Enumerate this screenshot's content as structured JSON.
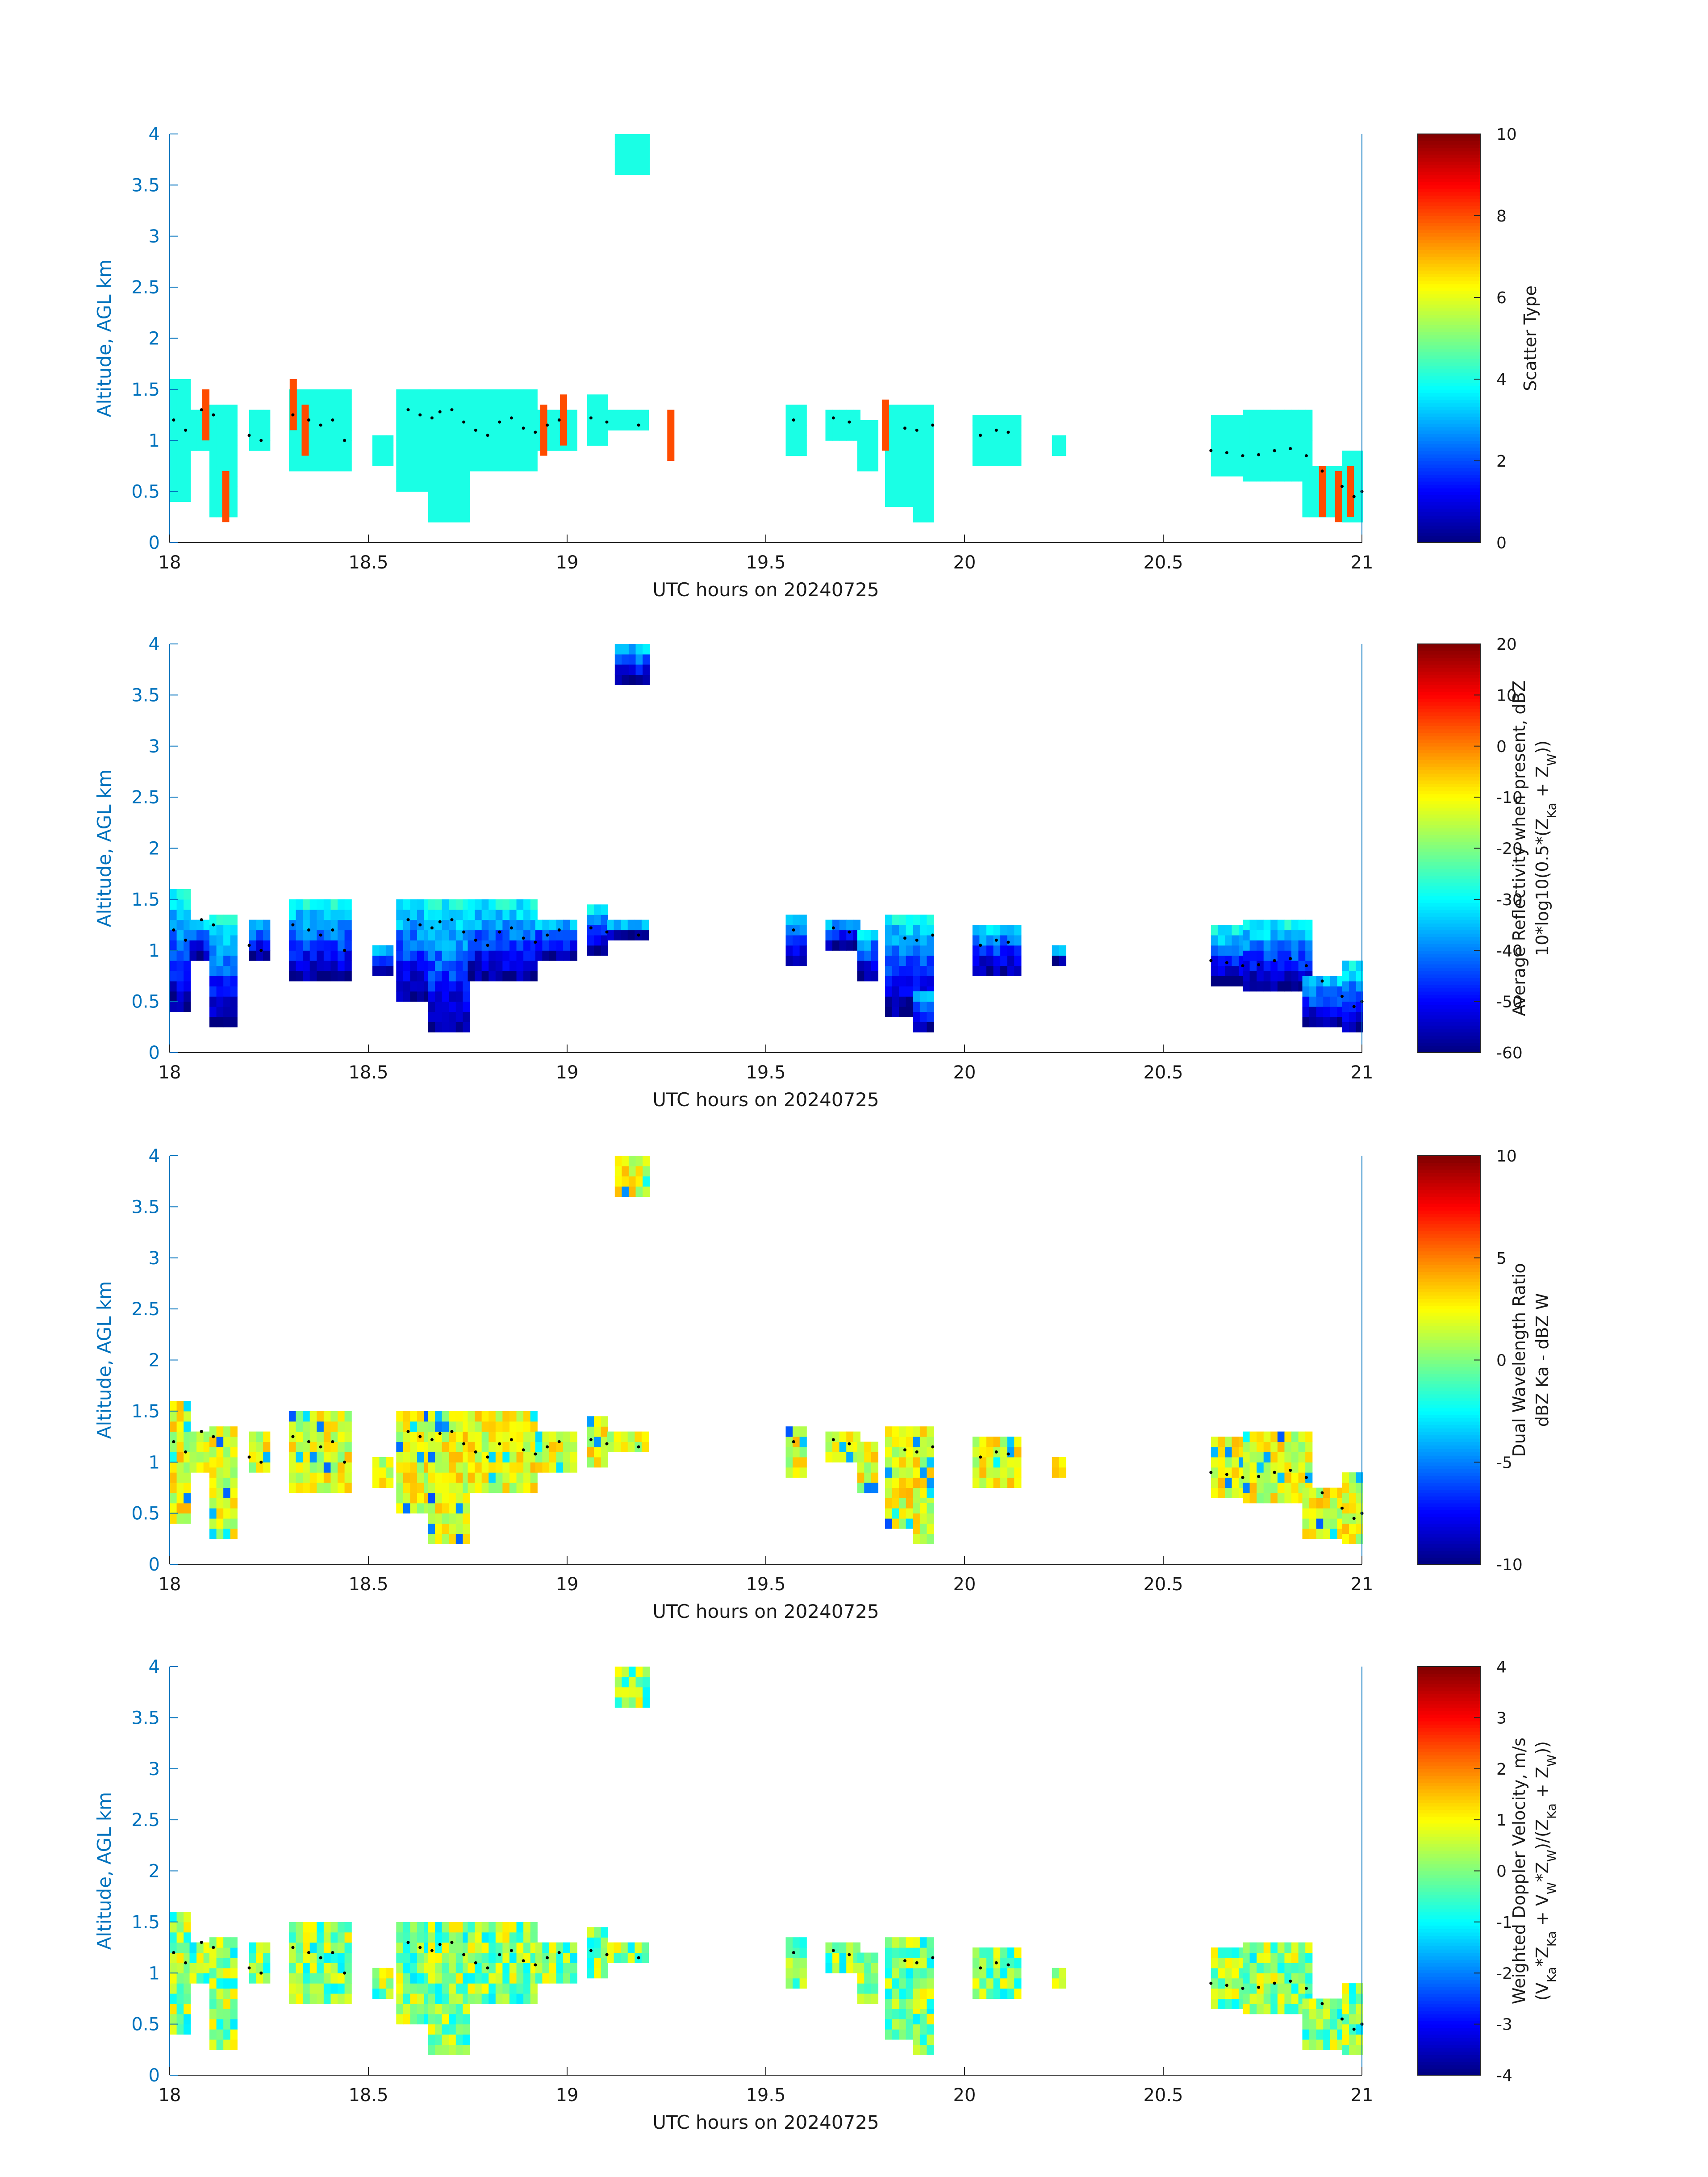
{
  "chart_data": [
    {
      "type": "heatmap",
      "xlabel": "UTC hours on 20240725",
      "ylabel": "Altitude, AGL km",
      "xlim": [
        18,
        21
      ],
      "ylim": [
        0,
        4
      ],
      "xticks": [
        "18",
        "18.5",
        "19",
        "19.5",
        "20",
        "20.5",
        "21"
      ],
      "yticks": [
        "0",
        "0.5",
        "1",
        "1.5",
        "2",
        "2.5",
        "3",
        "3.5",
        "4"
      ],
      "colorbar": {
        "label_lines": [
          "Scatter Type"
        ],
        "range": [
          0,
          10
        ],
        "ticks": [
          "0",
          "2",
          "4",
          "6",
          "8",
          "10"
        ]
      },
      "dominant_value": 4,
      "cell_value_note": "",
      "highlight_cells": [
        [
          18.09,
          1.25,
          8
        ],
        [
          18.14,
          0.45,
          8
        ],
        [
          18.31,
          1.35,
          8
        ],
        [
          18.34,
          1.1,
          8
        ],
        [
          18.94,
          1.1,
          8
        ],
        [
          18.99,
          1.2,
          8
        ],
        [
          19.26,
          1.05,
          8
        ],
        [
          19.8,
          1.15,
          8
        ],
        [
          20.9,
          0.5,
          8
        ],
        [
          20.94,
          0.45,
          8
        ],
        [
          20.97,
          0.5,
          8
        ]
      ]
    },
    {
      "type": "heatmap",
      "xlabel": "UTC hours on 20240725",
      "ylabel": "Altitude, AGL km",
      "xlim": [
        18,
        21
      ],
      "ylim": [
        0,
        4
      ],
      "xticks": [
        "18",
        "18.5",
        "19",
        "19.5",
        "20",
        "20.5",
        "21"
      ],
      "yticks": [
        "0",
        "0.5",
        "1",
        "1.5",
        "2",
        "2.5",
        "3",
        "3.5",
        "4"
      ],
      "colorbar": {
        "label_lines": [
          "Average Reflectivity when present, dBZ",
          "10*log10(0.5*(Z_Ka + Z_W))"
        ],
        "range": [
          -60,
          20
        ],
        "ticks": [
          "-60",
          "-50",
          "-40",
          "-30",
          "-20",
          "-10",
          "0",
          "10",
          "20"
        ]
      },
      "dominant_value": -45
    },
    {
      "type": "heatmap",
      "xlabel": "UTC hours on 20240725",
      "ylabel": "Altitude, AGL km",
      "xlim": [
        18,
        21
      ],
      "ylim": [
        0,
        4
      ],
      "xticks": [
        "18",
        "18.5",
        "19",
        "19.5",
        "20",
        "20.5",
        "21"
      ],
      "yticks": [
        "0",
        "0.5",
        "1",
        "1.5",
        "2",
        "2.5",
        "3",
        "3.5",
        "4"
      ],
      "colorbar": {
        "label_lines": [
          "Dual Wavelength Ratio",
          "dBZ Ka - dBZ W"
        ],
        "range": [
          -10,
          10
        ],
        "ticks": [
          "-10",
          "-5",
          "0",
          "5",
          "10"
        ]
      },
      "dominant_value": 2
    },
    {
      "type": "heatmap",
      "xlabel": "UTC hours on 20240725",
      "ylabel": "Altitude, AGL km",
      "xlim": [
        18,
        21
      ],
      "ylim": [
        0,
        4
      ],
      "xticks": [
        "18",
        "18.5",
        "19",
        "19.5",
        "20",
        "20.5",
        "21"
      ],
      "yticks": [
        "0",
        "0.5",
        "1",
        "1.5",
        "2",
        "2.5",
        "3",
        "3.5",
        "4"
      ],
      "colorbar": {
        "label_lines": [
          "Weighted Doppler Velocity, m/s",
          "(V_Ka*Z_Ka + V_W*Z_W)/(Z_Ka + Z_W))"
        ],
        "range": [
          -4,
          4
        ],
        "ticks": [
          "-4",
          "-3",
          "-2",
          "-1",
          "0",
          "1",
          "2",
          "3",
          "4"
        ]
      },
      "dominant_value": 0
    }
  ],
  "cloud_base_dots": [
    [
      18.01,
      1.2
    ],
    [
      18.04,
      1.1
    ],
    [
      18.08,
      1.3
    ],
    [
      18.11,
      1.25
    ],
    [
      18.2,
      1.05
    ],
    [
      18.23,
      1.0
    ],
    [
      18.31,
      1.25
    ],
    [
      18.35,
      1.2
    ],
    [
      18.38,
      1.15
    ],
    [
      18.41,
      1.2
    ],
    [
      18.44,
      1.0
    ],
    [
      18.6,
      1.3
    ],
    [
      18.63,
      1.25
    ],
    [
      18.66,
      1.22
    ],
    [
      18.68,
      1.28
    ],
    [
      18.71,
      1.3
    ],
    [
      18.74,
      1.18
    ],
    [
      18.77,
      1.1
    ],
    [
      18.8,
      1.05
    ],
    [
      18.83,
      1.18
    ],
    [
      18.86,
      1.22
    ],
    [
      18.89,
      1.12
    ],
    [
      18.92,
      1.08
    ],
    [
      18.95,
      1.15
    ],
    [
      18.98,
      1.2
    ],
    [
      19.06,
      1.22
    ],
    [
      19.1,
      1.18
    ],
    [
      19.18,
      1.15
    ],
    [
      19.57,
      1.2
    ],
    [
      19.67,
      1.22
    ],
    [
      19.71,
      1.18
    ],
    [
      19.85,
      1.12
    ],
    [
      19.88,
      1.1
    ],
    [
      19.92,
      1.15
    ],
    [
      20.04,
      1.05
    ],
    [
      20.08,
      1.1
    ],
    [
      20.11,
      1.08
    ],
    [
      20.62,
      0.9
    ],
    [
      20.66,
      0.88
    ],
    [
      20.7,
      0.85
    ],
    [
      20.74,
      0.86
    ],
    [
      20.78,
      0.9
    ],
    [
      20.82,
      0.92
    ],
    [
      20.86,
      0.85
    ],
    [
      20.9,
      0.7
    ],
    [
      20.95,
      0.55
    ],
    [
      20.98,
      0.45
    ],
    [
      21.0,
      0.5
    ]
  ],
  "cloud_regions": [
    [
      18.0,
      18.05,
      0.4,
      1.55
    ],
    [
      18.05,
      18.12,
      0.9,
      1.3
    ],
    [
      18.1,
      18.16,
      0.25,
      1.3
    ],
    [
      18.2,
      18.25,
      0.9,
      1.3
    ],
    [
      18.3,
      18.45,
      0.7,
      1.45
    ],
    [
      18.51,
      18.55,
      0.75,
      1.05
    ],
    [
      18.57,
      18.65,
      0.5,
      1.5
    ],
    [
      18.65,
      18.75,
      0.2,
      1.45
    ],
    [
      18.75,
      18.92,
      0.7,
      1.45
    ],
    [
      18.92,
      19.02,
      0.9,
      1.3
    ],
    [
      19.05,
      19.1,
      0.95,
      1.4
    ],
    [
      19.1,
      19.2,
      1.1,
      1.25
    ],
    [
      19.12,
      19.2,
      3.6,
      4.0
    ],
    [
      19.55,
      19.6,
      0.85,
      1.3
    ],
    [
      19.65,
      19.73,
      1.0,
      1.3
    ],
    [
      19.73,
      19.77,
      0.7,
      1.2
    ],
    [
      19.8,
      19.92,
      0.35,
      1.35
    ],
    [
      19.87,
      19.91,
      0.2,
      0.6
    ],
    [
      20.02,
      20.13,
      0.75,
      1.25
    ],
    [
      20.22,
      20.25,
      0.85,
      1.0
    ],
    [
      20.62,
      20.7,
      0.65,
      1.2
    ],
    [
      20.7,
      20.86,
      0.6,
      1.25
    ],
    [
      20.85,
      20.95,
      0.25,
      0.75
    ],
    [
      20.95,
      21.0,
      0.2,
      0.85
    ]
  ]
}
